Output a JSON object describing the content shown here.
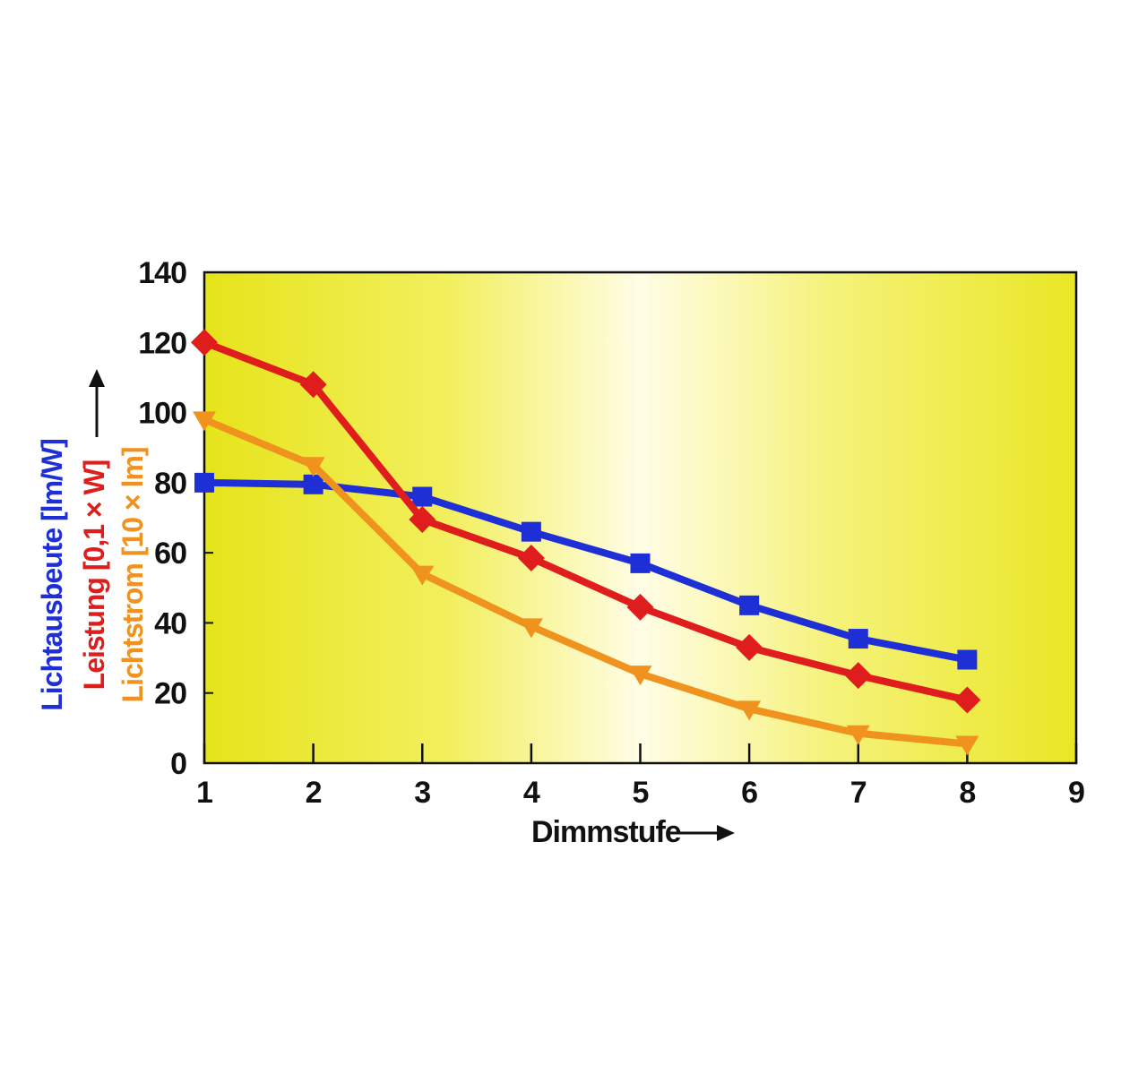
{
  "chart_data": {
    "type": "line",
    "x": [
      1,
      2,
      3,
      4,
      5,
      6,
      7,
      8
    ],
    "xlim": [
      1,
      9
    ],
    "ylim": [
      0,
      140
    ],
    "xticks": [
      "1",
      "2",
      "3",
      "4",
      "5",
      "6",
      "7",
      "8",
      "9"
    ],
    "yticks": [
      "0",
      "20",
      "40",
      "60",
      "80",
      "100",
      "120",
      "140"
    ],
    "xlabel": "Dimmstufe",
    "ylabels": [
      {
        "text": "Lichtausbeute [lm/W]",
        "color": "#1f2fd6"
      },
      {
        "text": "Leistung [0,1 × W]",
        "color": "#e01d1d"
      },
      {
        "text": "Lichtstrom [10 × lm]",
        "color": "#f0921e"
      }
    ],
    "grid": false,
    "plot_background": "yellow-white-yellow gradient",
    "series": [
      {
        "name": "Lichtausbeute [lm/W]",
        "marker": "square",
        "color": "#1f2fd6",
        "values": [
          80,
          79.5,
          76,
          66,
          57,
          45,
          35.5,
          29.5
        ]
      },
      {
        "name": "Leistung [0,1 × W]",
        "marker": "diamond",
        "color": "#e01d1d",
        "values": [
          120,
          108,
          69.5,
          58.5,
          44.5,
          33,
          25,
          18
        ]
      },
      {
        "name": "Lichtstrom [10 × lm]",
        "marker": "triangle-down",
        "color": "#f0921e",
        "values": [
          98,
          85,
          54,
          39,
          25.5,
          15.5,
          8.5,
          5.5
        ]
      }
    ]
  }
}
